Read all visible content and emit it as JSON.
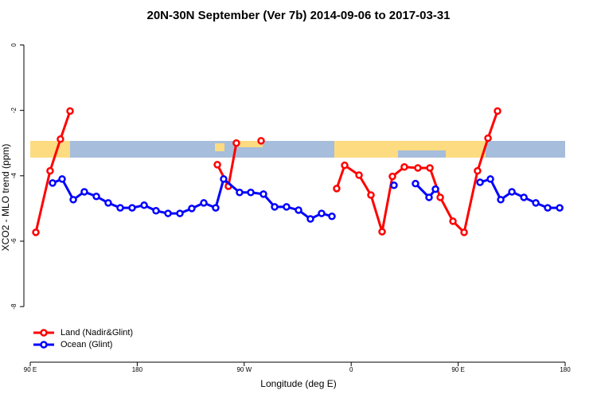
{
  "chart_data": {
    "type": "line",
    "title": "20N-30N September (Ver 7b)   2014-09-06 to 2017-03-31",
    "x_label": "Longitude (deg E)",
    "y_label": "XCO2 - MLO trend (ppm)",
    "xlim": [
      90,
      540
    ],
    "xticks": [
      {
        "value": 90,
        "label": "90 E"
      },
      180,
      {
        "value": 270,
        "label": "90 W"
      },
      {
        "value": 360,
        "label": "0"
      },
      {
        "value": 450,
        "label": "90 E"
      },
      {
        "value": 540,
        "label": "180"
      }
    ],
    "ylim": [
      -9.7,
      0.45
    ],
    "yticks": [
      0,
      -2,
      -4,
      -6,
      -8
    ],
    "legend": "bottom-left",
    "series": [
      {
        "name": "Land (Nadir&Glint)",
        "color": "#ff0000",
        "x": [
          94.7,
          106.7,
          115.4,
          123.5,
          null,
          247.4,
          256.7,
          263.4,
          null,
          284.2,
          null,
          347.8,
          354.5,
          366.6,
          376.6,
          386.0,
          394.7,
          404.7,
          416.1,
          426.2,
          434.9,
          445.6,
          455.0,
          466.3,
          475.1,
          483.1
        ],
        "values": [
          -5.73,
          -3.85,
          -2.88,
          -2.02,
          null,
          -3.66,
          -4.32,
          -3.0,
          null,
          -2.93,
          null,
          -4.39,
          -3.68,
          -3.98,
          -4.59,
          -5.71,
          -4.02,
          -3.73,
          -3.76,
          -3.76,
          -4.66,
          -5.39,
          -5.73,
          -3.85,
          -2.85,
          -2.02
        ]
      },
      {
        "name": "Ocean (Glint)",
        "color": "#0000ff",
        "x": [
          108.8,
          116.8,
          126.2,
          135.5,
          145.6,
          155.6,
          165.7,
          175.7,
          185.8,
          195.8,
          205.9,
          215.9,
          225.9,
          236.0,
          246.0,
          252.7,
          266.1,
          275.5,
          286.2,
          295.6,
          305.6,
          315.7,
          325.7,
          335.1,
          343.8,
          null,
          396.0,
          null,
          414.1,
          425.5,
          430.9,
          null,
          468.4,
          477.1,
          485.8,
          495.2,
          505.3,
          515.3,
          525.3,
          535.4
        ],
        "values": [
          -4.22,
          -4.1,
          -4.73,
          -4.49,
          -4.63,
          -4.83,
          -4.98,
          -4.98,
          -4.9,
          -5.07,
          -5.15,
          -5.15,
          -5.0,
          -4.83,
          -4.98,
          -4.1,
          -4.51,
          -4.51,
          -4.56,
          -4.95,
          -4.95,
          -5.05,
          -5.32,
          -5.15,
          -5.24,
          null,
          -4.29,
          null,
          -4.24,
          -4.66,
          -4.41,
          null,
          -4.2,
          -4.1,
          -4.73,
          -4.49,
          -4.66,
          -4.83,
          -4.98,
          -4.98
        ]
      }
    ]
  }
}
